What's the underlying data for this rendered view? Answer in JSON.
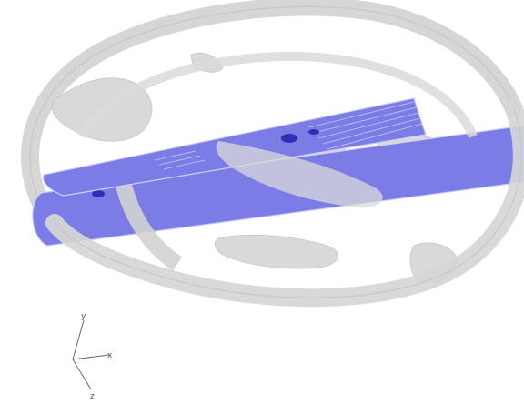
{
  "scene": {
    "colors": {
      "background": "#ffffff",
      "wake_surface": "#d6d6d6",
      "wake_edge": "#bdbdbd",
      "blade_fill": "#7b7ce6",
      "blade_dark": "#2f2fb4",
      "blade_edge": "#cfd0f4"
    }
  },
  "axes": {
    "x_label": "x",
    "y_label": "y",
    "z_label": "z"
  }
}
